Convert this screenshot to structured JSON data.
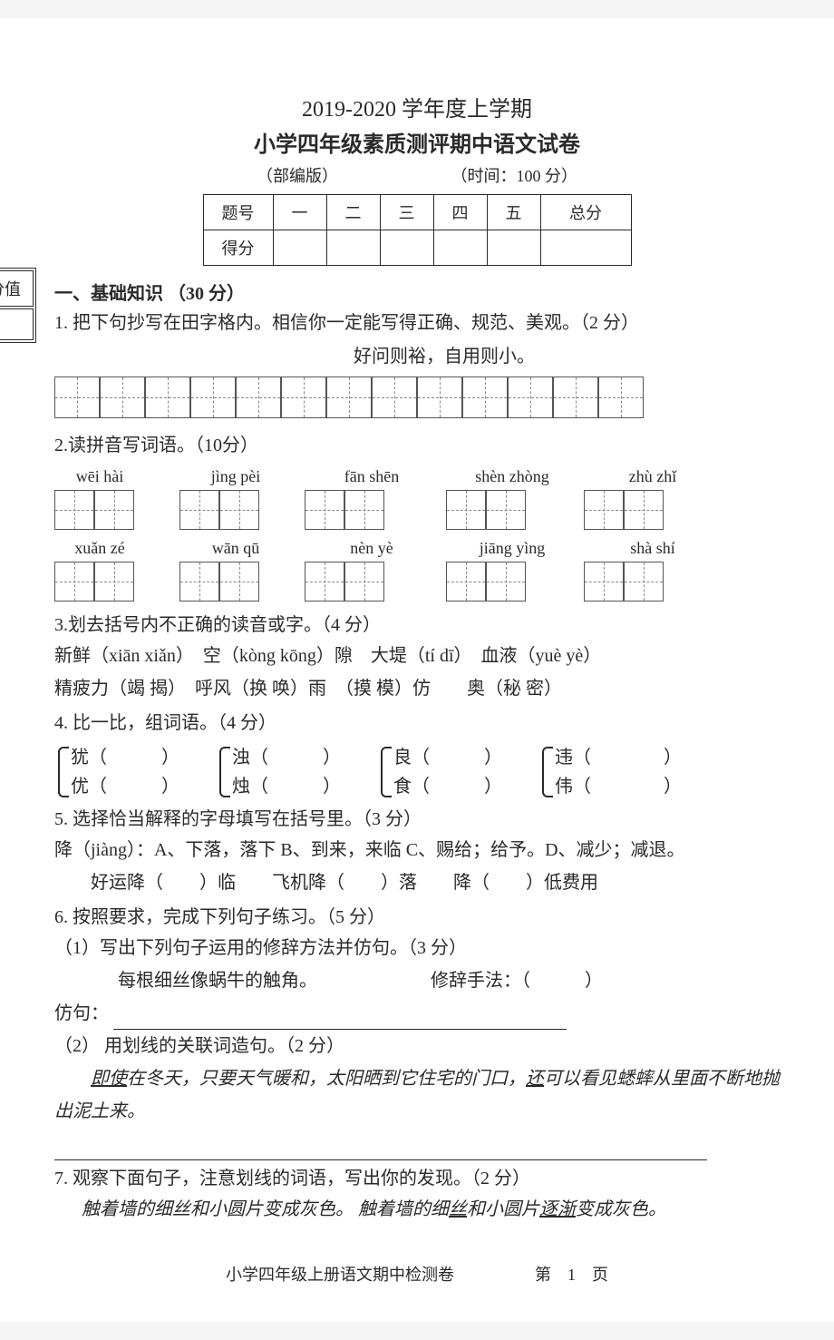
{
  "header": {
    "title_year": "2019-2020 学年度上学期",
    "title_exam": "小学四年级素质测评期中语文试卷",
    "version": "（部编版）",
    "time": "（时间：100 分）"
  },
  "score_table": {
    "row1": [
      "题号",
      "一",
      "二",
      "三",
      "四",
      "五",
      "总分"
    ],
    "row2_label": "得分"
  },
  "score_box_label": "分值",
  "section1": {
    "heading": "一、基础知识 （30 分）",
    "q1": {
      "prompt": "1. 把下句抄写在田字格内。相信你一定能写得正确、规范、美观。（2 分）",
      "copy_text": "好问则裕，自用则小。",
      "grid_cells": 13
    },
    "q2": {
      "prompt": "2.读拼音写词语。（10分）",
      "row1_pinyin": [
        "wēi hài",
        "jìng pèi",
        "fān shēn",
        "shèn zhòng",
        "zhù zhǐ"
      ],
      "row2_pinyin": [
        "xuǎn zé",
        "wān qū",
        "nèn yè",
        "jiāng yìng",
        "shà shí"
      ]
    },
    "q3": {
      "prompt": "3.划去括号内不正确的读音或字。（4 分）",
      "line1": "新鲜（xiān xiǎn）　空（kòng kōng）隙　大堤（tí dī）　血液（yuè yè）",
      "line2": "精疲力（竭 揭）　呼风（换 唤）雨　（摸 模）仿　　奥（秘 密）"
    },
    "q4": {
      "prompt": "4. 比一比，组词语。（4 分）",
      "pairs": [
        {
          "top": "犹（　　　）",
          "bottom": "优（　　　）"
        },
        {
          "top": "浊（　　　）",
          "bottom": "烛（　　　）"
        },
        {
          "top": "良（　　　）",
          "bottom": "食（　　　）"
        },
        {
          "top": "违（　　　　）",
          "bottom": "伟（　　　　）"
        }
      ]
    },
    "q5": {
      "prompt": "5. 选择恰当解释的字母填写在括号里。（3 分）",
      "options": "降（jiàng）：A、下落，落下 B、到来，来临 C、赐给；给予。D、减少；减退。",
      "items": "好运降（　　）临　　飞机降（　　）落　　降（　　）低费用"
    },
    "q6": {
      "prompt": "6. 按照要求，完成下列句子练习。（5 分）",
      "sub1_prompt": "（1）写出下列句子运用的修辞方法并仿句。（3 分）",
      "sub1_sentence": "每根细丝像蜗牛的触角。",
      "sub1_method_label": "修辞手法：（　　　）",
      "sub1_imitate_label": "仿句：",
      "sub2_prompt": "（2） 用划线的关联词造句。（2 分）",
      "sub2_pre": "即使",
      "sub2_mid1": "在冬天，只要天气暖和，太阳晒到它住宅的门口，",
      "sub2_link": "还",
      "sub2_mid2": "可以看见蟋蟀从里面不断地抛出泥土来。"
    },
    "q7": {
      "prompt": "7. 观察下面句子，注意划线的词语，写出你的发现。（2 分）",
      "s1_a": "触着墙的细丝和小圆片变成灰色。",
      "s1_b_pre": "触着墙的细",
      "s1_b_u1": "丝",
      "s1_b_mid": "和小圆片",
      "s1_b_u2": "逐渐",
      "s1_b_post": "变成灰色。"
    }
  },
  "footer": {
    "left": "小学四年级上册语文期中检测卷",
    "right": "第　1　页"
  }
}
